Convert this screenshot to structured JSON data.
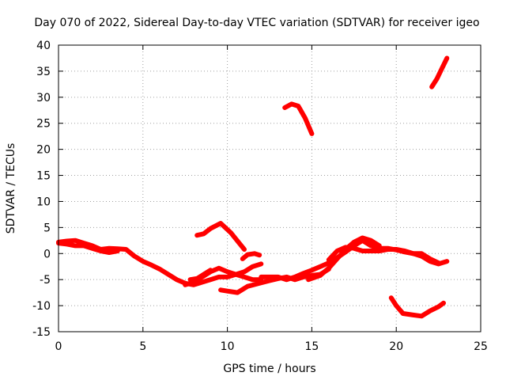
{
  "chart_data": {
    "type": "line",
    "title": "Day 070 of 2022, Sidereal Day-to-day VTEC variation (SDTVAR) for receiver igeo",
    "xlabel": "GPS time / hours",
    "ylabel": "SDTVAR / TECUs",
    "xlim": [
      0,
      25
    ],
    "ylim": [
      -15,
      40
    ],
    "xticks": [
      0,
      5,
      10,
      15,
      20,
      25
    ],
    "yticks": [
      -15,
      -10,
      -5,
      0,
      5,
      10,
      15,
      20,
      25,
      30,
      35,
      40
    ],
    "grid": true,
    "color": "#ff0000",
    "series": [
      {
        "name": "segment-1",
        "points": [
          [
            0.0,
            2.2
          ],
          [
            0.5,
            2.4
          ],
          [
            1.0,
            2.5
          ],
          [
            1.5,
            2.0
          ],
          [
            2.0,
            1.5
          ],
          [
            2.5,
            0.8
          ],
          [
            3.0,
            1.0
          ],
          [
            3.5,
            0.9
          ],
          [
            4.0,
            0.8
          ],
          [
            4.5,
            -0.5
          ],
          [
            5.0,
            -1.5
          ],
          [
            5.5,
            -2.2
          ],
          [
            6.0,
            -3.0
          ],
          [
            6.5,
            -4.0
          ],
          [
            7.0,
            -5.0
          ],
          [
            7.5,
            -5.7
          ],
          [
            8.0,
            -6.0
          ],
          [
            8.5,
            -5.5
          ],
          [
            9.0,
            -5.0
          ],
          [
            9.5,
            -4.5
          ],
          [
            10.0,
            -4.5
          ],
          [
            10.5,
            -4.0
          ],
          [
            11.0,
            -3.5
          ],
          [
            11.5,
            -2.5
          ],
          [
            12.0,
            -2.0
          ]
        ]
      },
      {
        "name": "segment-2",
        "points": [
          [
            0.0,
            2.0
          ],
          [
            0.5,
            1.8
          ],
          [
            1.0,
            1.5
          ],
          [
            1.5,
            1.5
          ],
          [
            2.0,
            1.0
          ],
          [
            2.5,
            0.5
          ],
          [
            3.0,
            0.2
          ],
          [
            3.5,
            0.5
          ]
        ]
      },
      {
        "name": "segment-3",
        "points": [
          [
            7.5,
            -6.0
          ],
          [
            8.0,
            -5.5
          ],
          [
            8.5,
            -4.5
          ],
          [
            9.0,
            -3.5
          ],
          [
            9.5,
            -2.8
          ],
          [
            10.0,
            -3.5
          ],
          [
            10.5,
            -4.0
          ],
          [
            11.0,
            -4.5
          ],
          [
            11.5,
            -5.0
          ],
          [
            12.0,
            -5.0
          ]
        ]
      },
      {
        "name": "segment-4",
        "points": [
          [
            7.8,
            -5.0
          ],
          [
            8.2,
            -4.8
          ],
          [
            8.6,
            -4.0
          ],
          [
            9.0,
            -3.2
          ]
        ]
      },
      {
        "name": "segment-5",
        "points": [
          [
            8.2,
            3.5
          ],
          [
            8.6,
            3.8
          ],
          [
            9.0,
            4.8
          ],
          [
            9.6,
            5.8
          ],
          [
            10.2,
            4.0
          ],
          [
            10.7,
            2.0
          ],
          [
            11.0,
            0.8
          ]
        ]
      },
      {
        "name": "segment-6",
        "points": [
          [
            10.9,
            -1.0
          ],
          [
            11.2,
            -0.2
          ],
          [
            11.6,
            0.0
          ],
          [
            11.9,
            -0.3
          ]
        ]
      },
      {
        "name": "segment-7",
        "points": [
          [
            9.6,
            -7.0
          ],
          [
            10.0,
            -7.2
          ],
          [
            10.6,
            -7.5
          ],
          [
            11.2,
            -6.3
          ],
          [
            11.8,
            -5.8
          ],
          [
            12.5,
            -5.2
          ],
          [
            13.0,
            -4.8
          ],
          [
            13.5,
            -4.5
          ],
          [
            14.0,
            -5.0
          ],
          [
            14.5,
            -4.5
          ],
          [
            15.0,
            -4.2
          ],
          [
            15.5,
            -4.0
          ],
          [
            16.0,
            -3.0
          ]
        ]
      },
      {
        "name": "segment-8",
        "points": [
          [
            12.0,
            -4.5
          ],
          [
            12.5,
            -4.5
          ],
          [
            13.0,
            -4.5
          ],
          [
            13.5,
            -5.0
          ],
          [
            14.0,
            -4.5
          ],
          [
            14.5,
            -3.8
          ],
          [
            15.0,
            -3.2
          ],
          [
            15.5,
            -2.5
          ],
          [
            16.0,
            -1.8
          ],
          [
            16.5,
            -0.8
          ],
          [
            17.0,
            0.3
          ],
          [
            17.5,
            1.5
          ],
          [
            18.0,
            2.5
          ],
          [
            18.5,
            1.5
          ],
          [
            19.0,
            1.0
          ],
          [
            19.5,
            1.0
          ],
          [
            20.0,
            0.7
          ],
          [
            20.5,
            0.3
          ],
          [
            21.0,
            0.0
          ],
          [
            21.5,
            -0.5
          ],
          [
            22.0,
            -1.5
          ],
          [
            22.5,
            -2.0
          ],
          [
            23.0,
            -1.5
          ]
        ]
      },
      {
        "name": "segment-9",
        "points": [
          [
            14.8,
            -5.0
          ],
          [
            15.5,
            -4.2
          ],
          [
            16.0,
            -2.8
          ],
          [
            16.5,
            -1.0
          ],
          [
            17.0,
            0.8
          ],
          [
            17.5,
            2.2
          ],
          [
            18.0,
            3.0
          ],
          [
            18.5,
            2.5
          ],
          [
            19.0,
            1.5
          ]
        ]
      },
      {
        "name": "segment-10",
        "points": [
          [
            16.0,
            -1.2
          ],
          [
            16.5,
            0.5
          ],
          [
            17.0,
            1.2
          ],
          [
            17.5,
            1.0
          ],
          [
            18.0,
            0.5
          ],
          [
            18.5,
            0.5
          ],
          [
            19.0,
            0.5
          ],
          [
            19.5,
            0.8
          ],
          [
            20.0,
            0.8
          ],
          [
            20.5,
            0.5
          ],
          [
            21.0,
            0.0
          ],
          [
            21.5,
            0.0
          ],
          [
            22.0,
            -1.0
          ],
          [
            22.5,
            -1.8
          ]
        ]
      },
      {
        "name": "segment-11",
        "points": [
          [
            13.4,
            28.0
          ],
          [
            13.8,
            28.7
          ],
          [
            14.2,
            28.3
          ],
          [
            14.6,
            26.0
          ],
          [
            15.0,
            23.0
          ]
        ]
      },
      {
        "name": "segment-12",
        "points": [
          [
            19.7,
            -8.5
          ],
          [
            20.0,
            -10.0
          ],
          [
            20.4,
            -11.5
          ],
          [
            21.0,
            -11.8
          ],
          [
            21.5,
            -12.0
          ],
          [
            22.0,
            -11.0
          ],
          [
            22.5,
            -10.2
          ],
          [
            22.8,
            -9.5
          ]
        ]
      },
      {
        "name": "segment-13",
        "points": [
          [
            22.1,
            32.0
          ],
          [
            22.4,
            33.5
          ],
          [
            22.7,
            35.5
          ],
          [
            23.0,
            37.5
          ]
        ]
      }
    ]
  }
}
